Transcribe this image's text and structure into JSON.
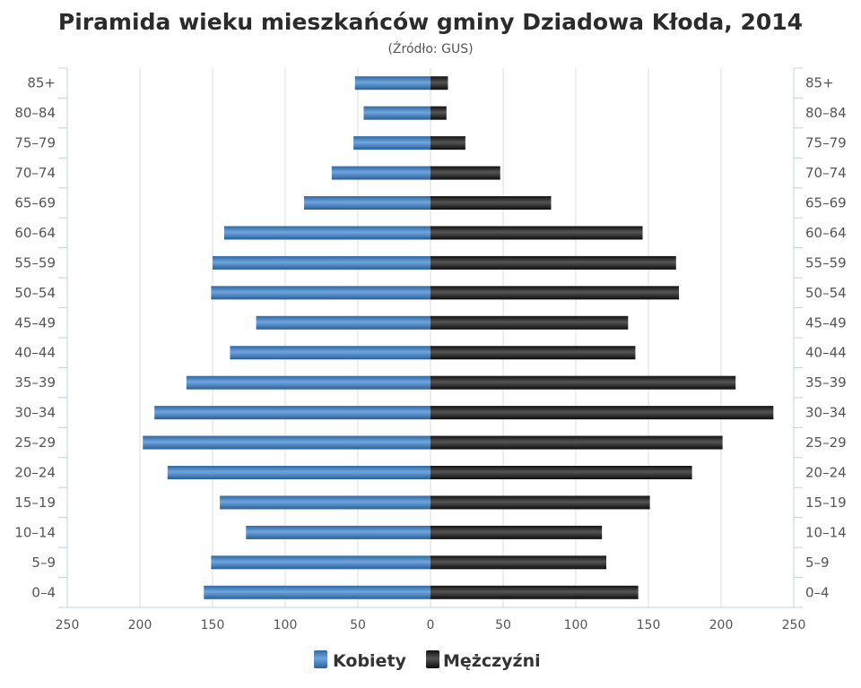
{
  "chart_data": {
    "type": "bar",
    "orientation": "horizontal",
    "title": "Piramida wieku mieszkańców gminy Dziadowa Kłoda, 2014",
    "subtitle": "(Źródło: GUS)",
    "categories": [
      "0–4",
      "5–9",
      "10–14",
      "15–19",
      "20–24",
      "25–29",
      "30–34",
      "35–39",
      "40–44",
      "45–49",
      "50–54",
      "55–59",
      "60–64",
      "65–69",
      "70–74",
      "75–79",
      "80–84",
      "85+"
    ],
    "series": [
      {
        "name": "Kobiety",
        "values": [
          156,
          151,
          127,
          145,
          181,
          198,
          190,
          168,
          138,
          120,
          151,
          150,
          142,
          87,
          68,
          53,
          46,
          52
        ],
        "color": "#3a78b8"
      },
      {
        "name": "Mężczyźni",
        "values": [
          143,
          121,
          118,
          151,
          180,
          201,
          236,
          210,
          141,
          136,
          171,
          169,
          146,
          83,
          48,
          24,
          11,
          12
        ],
        "color": "#222222"
      }
    ],
    "xlim": [
      -250,
      250
    ],
    "xticks": [
      "250",
      "200",
      "150",
      "100",
      "50",
      "0",
      "50",
      "100",
      "150",
      "200",
      "250"
    ],
    "grid": true,
    "legend_position": "bottom"
  }
}
